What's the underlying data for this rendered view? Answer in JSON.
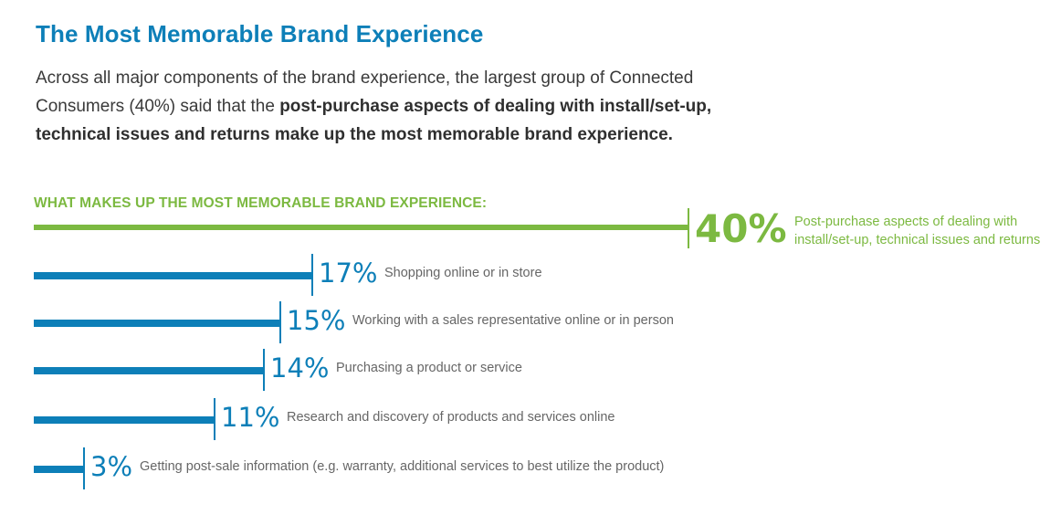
{
  "title": "The Most Memorable Brand Experience",
  "intro": {
    "plain": "Across all major components of the brand experience, the largest group of Connected Consumers (40%) said that the ",
    "bold": "post-purchase aspects of dealing with install/set-up, technical issues and returns make up the most memorable brand experience."
  },
  "chart_data": {
    "type": "bar",
    "orientation": "horizontal",
    "title": "WHAT MAKES UP THE MOST MEMORABLE BRAND EXPERIENCE:",
    "unit": "%",
    "xlim": [
      0,
      40
    ],
    "grid": false,
    "legend": "none",
    "colors": {
      "highlight": "#7cb941",
      "bar": "#0d7fb8",
      "label": "#666666"
    },
    "categories": [
      "Post-purchase aspects of dealing with install/set-up, technical issues and returns",
      "Shopping online or in store",
      "Working with a sales representative online or in person",
      "Purchasing a product or service",
      "Research and discovery of products and services online",
      "Getting post-sale information (e.g. warranty, additional services to best utilize the product)"
    ],
    "values": [
      40,
      17,
      15,
      14,
      11,
      3
    ],
    "value_labels": [
      "40%",
      "17%",
      "15%",
      "14%",
      "11%",
      "3%"
    ]
  }
}
